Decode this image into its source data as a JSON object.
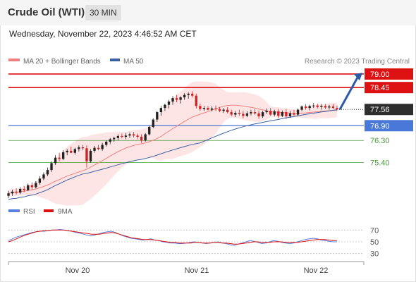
{
  "header": {
    "title": "Crude Oil (WTI)",
    "timeframe": "30 MIN"
  },
  "datetime": "Wednesday, November 22, 2023 4:46:52 AM CET",
  "legend": {
    "ma20": "MA 20 + Bollinger Bands",
    "ma50": "MA 50",
    "credit": "Research © 2023 Trading Central"
  },
  "rsi_legend": {
    "rsi": "RSI",
    "ma9": "9MA"
  },
  "colors": {
    "ma20": "#f08080",
    "ma50": "#3b5fa0",
    "band": "#fde2e2",
    "up": "#222222",
    "down": "#d32020",
    "resistance": "#dd1111",
    "support": "#4a78d8",
    "target": "#4a9a3a",
    "arrow": "#2a5aa8",
    "rsi": "#5b7fe0",
    "rsi_ma": "#e01010"
  },
  "chart_data": [
    {
      "type": "candlestick",
      "title": "Crude Oil (WTI)",
      "x_ticks": [
        "Nov 20",
        "Nov 21",
        "Nov 22"
      ],
      "ylim": [
        73.9,
        79.2
      ],
      "current_price": "77.56",
      "levels": [
        {
          "label": "79.00",
          "value": 79.0,
          "kind": "resistance"
        },
        {
          "label": "78.45",
          "value": 78.45,
          "kind": "resistance"
        },
        {
          "label": "76.90",
          "value": 76.9,
          "kind": "pivot"
        },
        {
          "label": "76.30",
          "value": 76.3,
          "kind": "target"
        },
        {
          "label": "75.40",
          "value": 75.4,
          "kind": "target"
        }
      ],
      "ohlc": [
        [
          74.05,
          74.25,
          73.95,
          74.15
        ],
        [
          74.15,
          74.3,
          74.05,
          74.22
        ],
        [
          74.22,
          74.35,
          74.1,
          74.18
        ],
        [
          74.18,
          74.4,
          74.12,
          74.33
        ],
        [
          74.33,
          74.45,
          74.2,
          74.28
        ],
        [
          74.28,
          74.55,
          74.24,
          74.48
        ],
        [
          74.48,
          74.6,
          74.3,
          74.4
        ],
        [
          74.4,
          74.65,
          74.35,
          74.58
        ],
        [
          74.58,
          74.85,
          74.5,
          74.75
        ],
        [
          74.75,
          75.0,
          74.68,
          74.92
        ],
        [
          74.92,
          75.2,
          74.85,
          75.1
        ],
        [
          75.1,
          75.45,
          75.02,
          75.38
        ],
        [
          75.38,
          75.7,
          75.3,
          75.6
        ],
        [
          75.6,
          75.8,
          75.45,
          75.55
        ],
        [
          75.55,
          75.9,
          75.5,
          75.82
        ],
        [
          75.82,
          75.95,
          75.7,
          75.88
        ],
        [
          75.88,
          76.05,
          75.78,
          75.8
        ],
        [
          75.8,
          76.0,
          75.72,
          75.95
        ],
        [
          75.95,
          76.1,
          75.85,
          76.02
        ],
        [
          76.02,
          76.12,
          75.9,
          75.98
        ],
        [
          75.98,
          76.1,
          75.2,
          75.45
        ],
        [
          75.45,
          75.95,
          75.4,
          75.88
        ],
        [
          75.88,
          76.08,
          75.8,
          76.0
        ],
        [
          76.0,
          76.12,
          75.9,
          75.95
        ],
        [
          75.95,
          76.2,
          75.88,
          76.12
        ],
        [
          76.12,
          76.3,
          76.05,
          76.25
        ],
        [
          76.25,
          76.4,
          76.15,
          76.35
        ],
        [
          76.35,
          76.45,
          76.25,
          76.4
        ],
        [
          76.4,
          76.55,
          76.3,
          76.48
        ],
        [
          76.48,
          76.58,
          76.38,
          76.45
        ],
        [
          76.45,
          76.6,
          76.35,
          76.5
        ],
        [
          76.5,
          76.62,
          76.4,
          76.55
        ],
        [
          76.55,
          76.65,
          76.42,
          76.5
        ],
        [
          76.5,
          76.58,
          76.35,
          76.45
        ],
        [
          76.45,
          76.55,
          76.2,
          76.3
        ],
        [
          76.3,
          76.6,
          76.25,
          76.55
        ],
        [
          76.55,
          76.9,
          76.5,
          76.85
        ],
        [
          76.85,
          77.2,
          76.8,
          77.15
        ],
        [
          77.15,
          77.5,
          77.05,
          77.45
        ],
        [
          77.45,
          77.7,
          77.3,
          77.62
        ],
        [
          77.62,
          77.8,
          77.5,
          77.75
        ],
        [
          77.75,
          77.95,
          77.6,
          77.88
        ],
        [
          77.88,
          78.1,
          77.75,
          78.02
        ],
        [
          78.02,
          78.15,
          77.85,
          77.95
        ],
        [
          77.95,
          78.1,
          77.8,
          78.05
        ],
        [
          78.05,
          78.22,
          77.95,
          78.15
        ],
        [
          78.15,
          78.25,
          78.0,
          78.2
        ],
        [
          78.2,
          78.3,
          78.05,
          78.12
        ],
        [
          78.12,
          78.2,
          77.6,
          77.7
        ],
        [
          77.7,
          77.8,
          77.5,
          77.58
        ],
        [
          77.58,
          77.7,
          77.5,
          77.62
        ],
        [
          77.62,
          77.7,
          77.52,
          77.55
        ],
        [
          77.55,
          77.68,
          77.48,
          77.6
        ],
        [
          77.6,
          77.72,
          77.5,
          77.58
        ],
        [
          77.58,
          77.66,
          77.45,
          77.5
        ],
        [
          77.5,
          77.62,
          77.42,
          77.55
        ],
        [
          77.55,
          77.65,
          77.4,
          77.45
        ],
        [
          77.45,
          77.55,
          77.28,
          77.35
        ],
        [
          77.35,
          77.5,
          77.25,
          77.42
        ],
        [
          77.42,
          77.55,
          77.3,
          77.38
        ],
        [
          77.38,
          77.5,
          77.2,
          77.3
        ],
        [
          77.3,
          77.48,
          77.25,
          77.4
        ],
        [
          77.4,
          77.55,
          77.32,
          77.45
        ],
        [
          77.45,
          77.58,
          77.35,
          77.4
        ],
        [
          77.4,
          77.52,
          77.18,
          77.28
        ],
        [
          77.28,
          77.5,
          77.22,
          77.45
        ],
        [
          77.45,
          77.6,
          77.38,
          77.5
        ],
        [
          77.5,
          77.62,
          77.3,
          77.35
        ],
        [
          77.35,
          77.55,
          77.28,
          77.48
        ],
        [
          77.48,
          77.58,
          77.2,
          77.3
        ],
        [
          77.3,
          77.52,
          77.25,
          77.45
        ],
        [
          77.45,
          77.58,
          77.18,
          77.28
        ],
        [
          77.28,
          77.5,
          77.22,
          77.4
        ],
        [
          77.4,
          77.55,
          77.3,
          77.35
        ],
        [
          77.35,
          77.6,
          77.28,
          77.55
        ],
        [
          77.55,
          77.72,
          77.48,
          77.68
        ],
        [
          77.68,
          77.78,
          77.55,
          77.62
        ],
        [
          77.62,
          77.75,
          77.52,
          77.7
        ],
        [
          77.7,
          77.82,
          77.62,
          77.72
        ],
        [
          77.72,
          77.8,
          77.6,
          77.66
        ],
        [
          77.66,
          77.78,
          77.55,
          77.7
        ],
        [
          77.7,
          77.78,
          77.58,
          77.64
        ],
        [
          77.64,
          77.75,
          77.55,
          77.68
        ],
        [
          77.68,
          77.78,
          77.58,
          77.62
        ],
        [
          77.62,
          77.72,
          77.5,
          77.56
        ]
      ]
    },
    {
      "type": "line",
      "title": "RSI",
      "series_names": [
        "RSI",
        "9MA"
      ],
      "y_ticks": [
        70,
        50,
        30
      ],
      "ylim": [
        20,
        80
      ],
      "rsi": [
        52,
        55,
        58,
        60,
        62,
        64,
        66,
        67,
        68,
        68,
        69,
        70,
        70,
        71,
        70,
        69,
        68,
        66,
        65,
        63,
        61,
        60,
        62,
        64,
        66,
        67,
        68,
        66,
        63,
        60,
        58,
        56,
        55,
        54,
        53,
        54,
        55,
        53,
        52,
        50,
        49,
        48,
        48,
        47,
        47,
        48,
        49,
        50,
        49,
        48,
        47,
        48,
        49,
        50,
        48,
        47,
        45,
        44,
        46,
        48,
        50,
        52,
        51,
        49,
        47,
        48,
        50,
        52,
        51,
        49,
        48,
        47,
        48,
        50,
        52,
        54,
        55,
        56,
        55,
        53,
        52,
        51,
        50,
        50
      ],
      "ma9": [
        50,
        52,
        55,
        58,
        61,
        63,
        65,
        67,
        68,
        69,
        69,
        70,
        70,
        70,
        70,
        69,
        68,
        67,
        66,
        65,
        64,
        63,
        63,
        63,
        64,
        65,
        66,
        65,
        63,
        61,
        59,
        57,
        56,
        55,
        54,
        54,
        54,
        53,
        52,
        51,
        50,
        49,
        49,
        48,
        48,
        48,
        48,
        49,
        49,
        48,
        48,
        48,
        49,
        49,
        48,
        48,
        47,
        46,
        46,
        47,
        48,
        49,
        50,
        50,
        49,
        49,
        49,
        50,
        50,
        50,
        49,
        49,
        49,
        49,
        50,
        51,
        52,
        53,
        54,
        54,
        54,
        53,
        52,
        52
      ]
    }
  ]
}
